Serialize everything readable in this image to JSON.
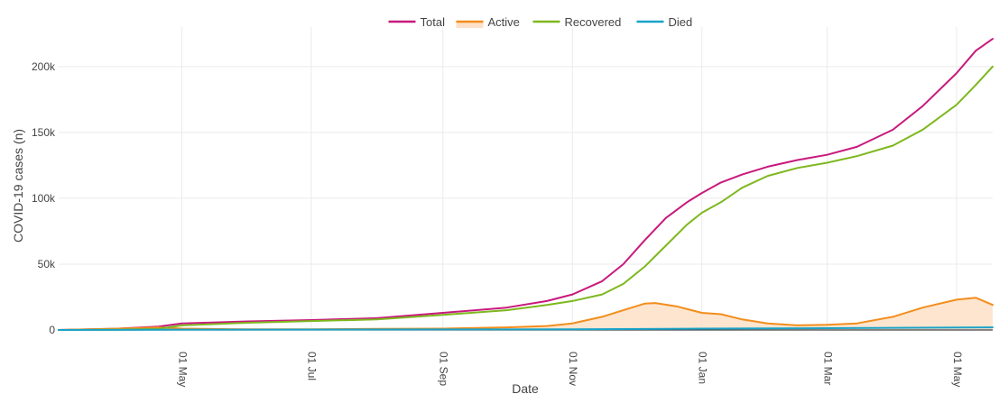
{
  "colors": {
    "total": "#c8197d",
    "active": "#f28e1c",
    "active_fill": "#fde0c8",
    "recovered": "#7db81e",
    "died": "#1aa3c8",
    "grid": "#ebebeb",
    "zeroline": "#444444"
  },
  "chart_data": {
    "type": "line",
    "xlabel": "Date",
    "ylabel": "COVID-19 cases (n)",
    "xlim": [
      "2020-03-04",
      "2021-05-18"
    ],
    "ylim": [
      0,
      230000
    ],
    "x_ticks": [
      {
        "date": "2020-05-01",
        "label": "01 May"
      },
      {
        "date": "2020-07-01",
        "label": "01 Jul"
      },
      {
        "date": "2020-09-01",
        "label": "01 Sep"
      },
      {
        "date": "2020-11-01",
        "label": "01 Nov"
      },
      {
        "date": "2021-01-01",
        "label": "01 Jan"
      },
      {
        "date": "2021-03-01",
        "label": "01 Mar"
      },
      {
        "date": "2021-05-01",
        "label": "01 May"
      }
    ],
    "y_ticks": [
      {
        "value": 0,
        "label": "0"
      },
      {
        "value": 50000,
        "label": "50k"
      },
      {
        "value": 100000,
        "label": "100k"
      },
      {
        "value": 150000,
        "label": "150k"
      },
      {
        "value": 200000,
        "label": "200k"
      }
    ],
    "legend": {
      "placement": "top-center"
    },
    "grid": true,
    "series": [
      {
        "name": "Total",
        "color_key": "total",
        "fill": false,
        "points": [
          [
            "2020-03-04",
            0
          ],
          [
            "2020-04-01",
            1000
          ],
          [
            "2020-04-20",
            2500
          ],
          [
            "2020-05-01",
            5000
          ],
          [
            "2020-06-01",
            6500
          ],
          [
            "2020-07-01",
            7500
          ],
          [
            "2020-08-01",
            9000
          ],
          [
            "2020-09-01",
            13000
          ],
          [
            "2020-10-01",
            17000
          ],
          [
            "2020-10-20",
            22000
          ],
          [
            "2020-11-01",
            27000
          ],
          [
            "2020-11-15",
            37000
          ],
          [
            "2020-11-25",
            50000
          ],
          [
            "2020-12-05",
            68000
          ],
          [
            "2020-12-15",
            85000
          ],
          [
            "2020-12-25",
            97000
          ],
          [
            "2021-01-01",
            104000
          ],
          [
            "2021-01-10",
            112000
          ],
          [
            "2021-01-20",
            118000
          ],
          [
            "2021-02-01",
            124000
          ],
          [
            "2021-02-15",
            129000
          ],
          [
            "2021-03-01",
            133000
          ],
          [
            "2021-03-15",
            139000
          ],
          [
            "2021-04-01",
            152000
          ],
          [
            "2021-04-15",
            170000
          ],
          [
            "2021-05-01",
            195000
          ],
          [
            "2021-05-10",
            212000
          ],
          [
            "2021-05-18",
            221000
          ]
        ]
      },
      {
        "name": "Active",
        "color_key": "active",
        "fill": true,
        "points": [
          [
            "2020-03-04",
            0
          ],
          [
            "2020-04-01",
            1000
          ],
          [
            "2020-04-20",
            2000
          ],
          [
            "2020-05-01",
            1000
          ],
          [
            "2020-06-01",
            500
          ],
          [
            "2020-07-01",
            500
          ],
          [
            "2020-08-01",
            800
          ],
          [
            "2020-09-01",
            1000
          ],
          [
            "2020-10-01",
            2000
          ],
          [
            "2020-10-20",
            3000
          ],
          [
            "2020-11-01",
            5000
          ],
          [
            "2020-11-15",
            10000
          ],
          [
            "2020-11-25",
            15000
          ],
          [
            "2020-12-05",
            20000
          ],
          [
            "2020-12-10",
            20500
          ],
          [
            "2020-12-20",
            18000
          ],
          [
            "2021-01-01",
            13000
          ],
          [
            "2021-01-10",
            12000
          ],
          [
            "2021-01-20",
            8000
          ],
          [
            "2021-02-01",
            5000
          ],
          [
            "2021-02-15",
            3500
          ],
          [
            "2021-03-01",
            4000
          ],
          [
            "2021-03-15",
            5000
          ],
          [
            "2021-04-01",
            10000
          ],
          [
            "2021-04-15",
            17000
          ],
          [
            "2021-05-01",
            23000
          ],
          [
            "2021-05-10",
            24500
          ],
          [
            "2021-05-18",
            19000
          ]
        ]
      },
      {
        "name": "Recovered",
        "color_key": "recovered",
        "fill": false,
        "points": [
          [
            "2020-03-04",
            0
          ],
          [
            "2020-04-01",
            300
          ],
          [
            "2020-04-20",
            800
          ],
          [
            "2020-05-01",
            3500
          ],
          [
            "2020-06-01",
            5500
          ],
          [
            "2020-07-01",
            6800
          ],
          [
            "2020-08-01",
            8000
          ],
          [
            "2020-09-01",
            11500
          ],
          [
            "2020-10-01",
            15000
          ],
          [
            "2020-10-20",
            19000
          ],
          [
            "2020-11-01",
            22000
          ],
          [
            "2020-11-15",
            27000
          ],
          [
            "2020-11-25",
            35000
          ],
          [
            "2020-12-05",
            48000
          ],
          [
            "2020-12-15",
            64000
          ],
          [
            "2020-12-25",
            80000
          ],
          [
            "2021-01-01",
            89000
          ],
          [
            "2021-01-10",
            97000
          ],
          [
            "2021-01-20",
            108000
          ],
          [
            "2021-02-01",
            117000
          ],
          [
            "2021-02-15",
            123000
          ],
          [
            "2021-03-01",
            127000
          ],
          [
            "2021-03-15",
            132000
          ],
          [
            "2021-04-01",
            140000
          ],
          [
            "2021-04-15",
            152000
          ],
          [
            "2021-05-01",
            171000
          ],
          [
            "2021-05-10",
            186000
          ],
          [
            "2021-05-18",
            200000
          ]
        ]
      },
      {
        "name": "Died",
        "color_key": "died",
        "fill": false,
        "points": [
          [
            "2020-03-04",
            0
          ],
          [
            "2020-05-01",
            300
          ],
          [
            "2020-09-01",
            400
          ],
          [
            "2020-11-01",
            500
          ],
          [
            "2021-01-01",
            1000
          ],
          [
            "2021-03-01",
            1400
          ],
          [
            "2021-05-18",
            2000
          ]
        ]
      }
    ]
  }
}
